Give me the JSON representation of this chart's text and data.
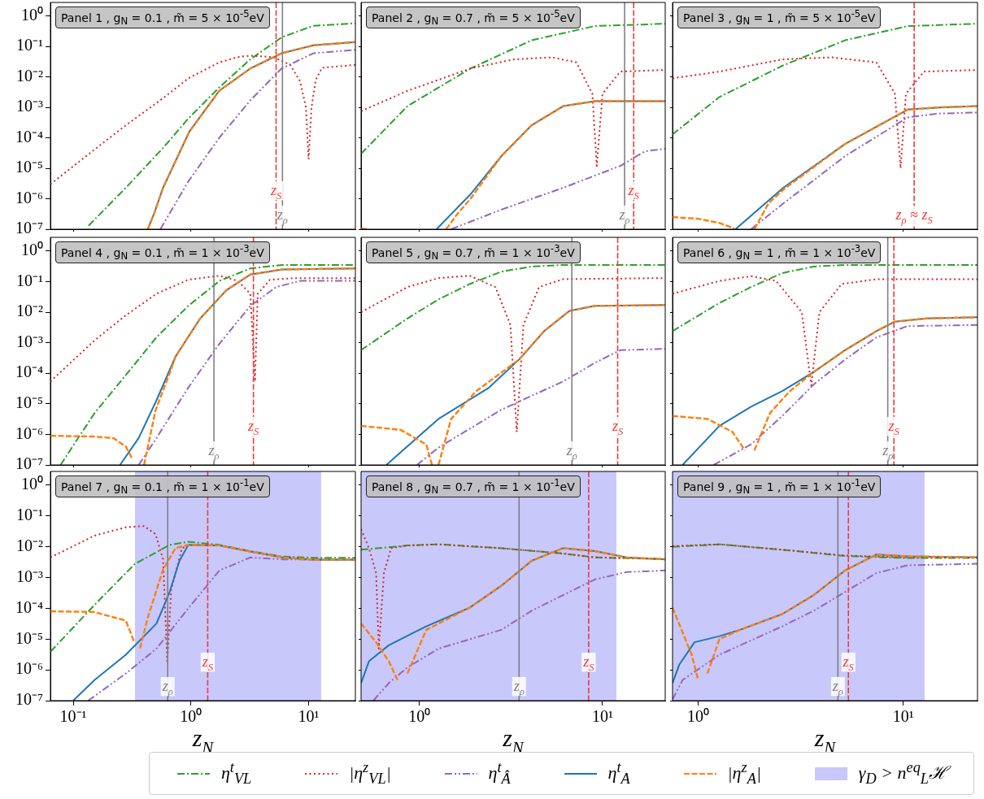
{
  "chart_data": [
    {
      "type": "line",
      "title": "Panel 1 , g$_{N}$ = 0.1 , m̃ = 5 × 10$^{-5}$eV",
      "log": "xy",
      "tick_labels": "y",
      "legend": "bottom",
      "xlim": [
        0.064,
        25
      ],
      "ylim": [
        1e-07,
        2.8
      ],
      "xticks": [
        {
          "value": 0.1,
          "label": null
        },
        {
          "value": 1,
          "label": null
        },
        {
          "value": 10,
          "label": null
        }
      ],
      "yticks": [
        {
          "value": 1,
          "label": "10⁰"
        },
        {
          "value": 0.1,
          "label": "10⁻¹"
        },
        {
          "value": 0.01,
          "label": "10⁻²"
        },
        {
          "value": 0.001,
          "label": "10⁻³"
        },
        {
          "value": 0.0001,
          "label": "10⁻⁴"
        },
        {
          "value": 1e-05,
          "label": "10⁻⁵"
        },
        {
          "value": 1e-06,
          "label": "10⁻⁶"
        },
        {
          "value": 1e-07,
          "label": "10⁻⁷"
        }
      ],
      "series": [
        {
          "name": "η$^{t}$$_{VL}$",
          "color": "#2ca02c",
          "line_style": "dashdot",
          "x": [
            0.135,
            0.28,
            0.59,
            0.95,
            1.74,
            3.2,
            5.9,
            11,
            25
          ],
          "values": [
            1.3e-07,
            2.3e-06,
            5e-05,
            0.00043,
            0.0045,
            0.038,
            0.2,
            0.48,
            0.58
          ]
        },
        {
          "name": "|η$^{z}$$_{VL}$|",
          "color": "#d62728",
          "line_style": "dotted",
          "x": [
            0.064,
            0.15,
            0.28,
            0.58,
            0.95,
            1.74,
            2.5,
            3.2,
            5,
            7,
            8.5,
            9.5,
            10,
            10.6,
            11.5,
            13,
            25
          ],
          "values": [
            3e-06,
            4e-05,
            0.00026,
            0.002,
            0.009,
            0.03,
            0.045,
            0.05,
            0.045,
            0.025,
            0.007,
            0.001,
            2e-05,
            0.001,
            0.008,
            0.02,
            0.025
          ]
        },
        {
          "name": "η$^{t}$$_{Â}$",
          "color": "#9467bd",
          "line_style": "dashdotdot",
          "x": [
            0.55,
            0.95,
            1.74,
            3.2,
            5.9,
            11,
            25
          ],
          "values": [
            1e-07,
            3.7e-06,
            0.0001,
            0.0017,
            0.019,
            0.06,
            0.078
          ]
        },
        {
          "name": "η$^{t}$$_{A}$",
          "color": "#1f77b4",
          "line_style": "solid",
          "x": [
            0.43,
            0.49,
            0.58,
            0.97,
            1.74,
            3.2,
            5.9,
            11,
            25
          ],
          "values": [
            1e-07,
            3.5e-07,
            2.3e-06,
            0.00016,
            0.0035,
            0.019,
            0.06,
            0.11,
            0.14
          ]
        },
        {
          "name": "|η$^{z}$$_{A}$|",
          "color": "#ff7f0e",
          "line_style": "dashed",
          "x": [
            0.43,
            0.49,
            0.58,
            0.97,
            1.74,
            3.2,
            5.9,
            11,
            25
          ],
          "values": [
            1e-07,
            3.5e-07,
            2.3e-06,
            0.00016,
            0.0035,
            0.019,
            0.06,
            0.11,
            0.14
          ]
        }
      ],
      "ref_lines": [
        {
          "axis": "x",
          "value": 6.0,
          "label": "z$_{ρ}$",
          "color": "#808080",
          "line_style": "solid"
        },
        {
          "axis": "x",
          "value": 5.3,
          "label": "z$_{S}$",
          "color": "#ef3b3b",
          "line_style": "dashed"
        }
      ]
    },
    {
      "type": "line",
      "title": "Panel 2 , g$_{N}$ = 0.7 , m̃ = 5 × 10$^{-5}$eV",
      "log": "xy",
      "tick_labels": false,
      "xlim": [
        0.48,
        22
      ],
      "ylim": [
        1e-07,
        2.8
      ],
      "xticks": [
        {
          "value": 1,
          "label": null
        },
        {
          "value": 10,
          "label": null
        }
      ],
      "yticks": [
        {
          "value": 1,
          "label": null
        },
        {
          "value": 0.1,
          "label": null
        },
        {
          "value": 0.01,
          "label": null
        },
        {
          "value": 0.001,
          "label": null
        },
        {
          "value": 0.0001,
          "label": null
        },
        {
          "value": 1e-05,
          "label": null
        },
        {
          "value": 1e-06,
          "label": null
        },
        {
          "value": 1e-07,
          "label": null
        }
      ],
      "series": [
        {
          "color": "#2ca02c",
          "line_style": "dashdot",
          "x": [
            0.48,
            0.86,
            1.9,
            4.1,
            9.1,
            22
          ],
          "values": [
            3e-05,
            0.0011,
            0.019,
            0.16,
            0.47,
            0.56
          ]
        },
        {
          "color": "#d62728",
          "line_style": "dotted",
          "x": [
            0.48,
            0.86,
            1.9,
            3.3,
            5.3,
            7.2,
            8.8,
            9.3,
            10,
            12.5,
            22
          ],
          "values": [
            0.00075,
            0.0035,
            0.019,
            0.038,
            0.044,
            0.03,
            0.0028,
            1.2e-05,
            0.0028,
            0.015,
            0.017
          ]
        },
        {
          "color": "#9467bd",
          "line_style": "dashdotdot",
          "x": [
            1.49,
            2.8,
            6.1,
            12.5,
            17,
            22
          ],
          "values": [
            1e-07,
            4.4e-07,
            2.3e-06,
            1.2e-05,
            3.6e-05,
            4.4e-05
          ]
        },
        {
          "color": "#1f77b4",
          "line_style": "solid",
          "x": [
            1.24,
            1.9,
            2.8,
            4.1,
            6.1,
            9.1,
            22
          ],
          "values": [
            1e-07,
            1.4e-06,
            2.5e-05,
            0.00026,
            0.0011,
            0.0016,
            0.0016
          ]
        },
        {
          "color": "#ff7f0e",
          "line_style": "dashed",
          "x": [
            0.48,
            0.52,
            0.9,
            1.4,
            1.6,
            1.9,
            2.8,
            4.1,
            6.1,
            9.1,
            22
          ],
          "values": [
            1.05e-07,
            1e-07,
            null,
            1e-07,
            3e-07,
            1e-06,
            2.5e-05,
            0.00026,
            0.0011,
            0.0016,
            0.0016
          ]
        }
      ],
      "ref_lines": [
        {
          "axis": "x",
          "value": 13.2,
          "label": "z$_{ρ}$",
          "color": "#808080",
          "line_style": "solid"
        },
        {
          "axis": "x",
          "value": 14.8,
          "label": "z$_{S}$",
          "color": "#ef3b3b",
          "line_style": "dashed"
        }
      ]
    },
    {
      "type": "line",
      "title": "Panel 3 , g$_{N}$ = 1 , m̃ = 5 × 10$^{-5}$eV",
      "log": "xy",
      "tick_labels": false,
      "xlim": [
        0.75,
        23
      ],
      "ylim": [
        1e-07,
        2.8
      ],
      "xticks": [
        {
          "value": 1,
          "label": null
        },
        {
          "value": 10,
          "label": null
        }
      ],
      "yticks": [
        {
          "value": 1,
          "label": null
        },
        {
          "value": 0.1,
          "label": null
        },
        {
          "value": 0.01,
          "label": null
        },
        {
          "value": 0.001,
          "label": null
        },
        {
          "value": 0.0001,
          "label": null
        },
        {
          "value": 1e-05,
          "label": null
        },
        {
          "value": 1e-06,
          "label": null
        },
        {
          "value": 1e-07,
          "label": null
        }
      ],
      "series": [
        {
          "color": "#2ca02c",
          "line_style": "dashdot",
          "x": [
            0.75,
            1.27,
            2.6,
            5.2,
            10.5,
            23
          ],
          "values": [
            0.00013,
            0.0022,
            0.024,
            0.16,
            0.47,
            0.56
          ]
        },
        {
          "color": "#d62728",
          "line_style": "dotted",
          "x": [
            0.75,
            1.27,
            2.6,
            4.5,
            7.4,
            9.1,
            9.7,
            10.3,
            12.6,
            23
          ],
          "values": [
            0.009,
            0.015,
            0.038,
            0.044,
            0.03,
            0.0028,
            1e-05,
            0.0028,
            0.015,
            0.017
          ]
        },
        {
          "color": "#9467bd",
          "line_style": "dashdotdot",
          "x": [
            1.81,
            2.6,
            5.2,
            10.5,
            14.9,
            23
          ],
          "values": [
            1e-07,
            7e-07,
            2.5e-05,
            0.00047,
            0.00063,
            0.00068
          ]
        },
        {
          "color": "#1f77b4",
          "line_style": "solid",
          "x": [
            1.52,
            2.6,
            5.2,
            10.5,
            14.9,
            23
          ],
          "values": [
            1e-07,
            2.3e-06,
            6.3e-05,
            0.00085,
            0.001,
            0.0011
          ]
        },
        {
          "color": "#ff7f0e",
          "line_style": "dashed",
          "x": [
            0.75,
            1.0,
            1.27,
            1.5,
            1.75,
            1.88,
            2.2,
            2.6,
            5.2,
            10.5,
            14.9,
            23
          ],
          "values": [
            2.5e-07,
            2.2e-07,
            1.6e-07,
            1.05e-07,
            null,
            1e-07,
            7e-07,
            2e-06,
            6.3e-05,
            0.00085,
            0.001,
            0.0011
          ]
        }
      ],
      "ref_lines": [
        {
          "axis": "x",
          "value": 11.3,
          "label": "z$_{ρ}$ ≈ z$_{S}$",
          "color": "#ef3b3b",
          "line_style": "dashed"
        }
      ]
    },
    {
      "type": "line",
      "title": "Panel 4 , g$_{N}$ = 0.1 , m̃ = 1 × 10$^{-3}$eV",
      "log": "xy",
      "tick_labels": "y",
      "xlim": [
        0.064,
        25
      ],
      "ylim": [
        1e-07,
        2.8
      ],
      "xticks": [
        {
          "value": 0.1,
          "label": null
        },
        {
          "value": 1,
          "label": null
        },
        {
          "value": 10,
          "label": null
        }
      ],
      "yticks": [
        {
          "value": 1,
          "label": "10⁰"
        },
        {
          "value": 0.1,
          "label": "10⁻¹"
        },
        {
          "value": 0.01,
          "label": "10⁻²"
        },
        {
          "value": 0.001,
          "label": "10⁻³"
        },
        {
          "value": 0.0001,
          "label": "10⁻⁴"
        },
        {
          "value": 1e-05,
          "label": "10⁻⁵"
        },
        {
          "value": 1e-06,
          "label": "10⁻⁶"
        },
        {
          "value": 1e-07,
          "label": "10⁻⁷"
        }
      ],
      "series": [
        {
          "color": "#2ca02c",
          "line_style": "dashdot",
          "x": [
            0.078,
            0.152,
            0.28,
            0.51,
            0.95,
            1.75,
            3.2,
            6,
            25
          ],
          "values": [
            1e-07,
            5e-06,
            8.7e-05,
            0.0015,
            0.016,
            0.105,
            0.27,
            0.35,
            0.35
          ]
        },
        {
          "color": "#d62728",
          "line_style": "dotted",
          "x": [
            0.064,
            0.152,
            0.28,
            0.51,
            0.95,
            1.75,
            2.5,
            3.2,
            3.5,
            3.7,
            4.7,
            7.6,
            25
          ],
          "values": [
            5.4e-05,
            0.0012,
            0.0079,
            0.04,
            0.115,
            0.155,
            0.105,
            0.04,
            5.4e-05,
            0.04,
            0.115,
            0.13,
            0.13
          ]
        },
        {
          "color": "#9467bd",
          "line_style": "dashdotdot",
          "x": [
            0.36,
            0.51,
            0.95,
            1.75,
            3.2,
            5.3,
            8.5,
            25
          ],
          "values": [
            1e-07,
            7.6e-07,
            3.4e-05,
            0.00093,
            0.016,
            0.066,
            0.105,
            0.105
          ]
        },
        {
          "color": "#1f77b4",
          "line_style": "solid",
          "x": [
            0.25,
            0.36,
            0.51,
            0.74,
            1.2,
            2.0,
            3.2,
            6,
            25
          ],
          "values": [
            1e-07,
            7.6e-07,
            1.3e-05,
            0.00035,
            0.0062,
            0.052,
            0.17,
            0.25,
            0.27
          ]
        },
        {
          "color": "#ff7f0e",
          "line_style": "dashed",
          "x": [
            0.064,
            0.15,
            0.22,
            0.28,
            0.32,
            0.36,
            0.4,
            0.5,
            0.66,
            0.74,
            1.2,
            2.0,
            3.2,
            6,
            25
          ],
          "values": [
            9e-07,
            8.5e-07,
            7.5e-07,
            4e-07,
            1.5e-07,
            null,
            1e-07,
            6e-06,
            0.0001,
            0.00035,
            0.0062,
            0.052,
            0.17,
            0.25,
            0.27
          ]
        }
      ],
      "ref_lines": [
        {
          "axis": "x",
          "value": 1.57,
          "label": "z$_{ρ}$",
          "color": "#808080",
          "line_style": "solid"
        },
        {
          "axis": "x",
          "value": 3.4,
          "label": "z$_{S}$",
          "color": "#ef3b3b",
          "line_style": "dashed"
        }
      ]
    },
    {
      "type": "line",
      "title": "Panel 5 , g$_{N}$ = 0.7 , m̃ = 1 × 10$^{-3}$eV",
      "log": "xy",
      "tick_labels": false,
      "xlim": [
        0.48,
        22
      ],
      "ylim": [
        1e-07,
        2.8
      ],
      "xticks": [
        {
          "value": 1,
          "label": null
        },
        {
          "value": 10,
          "label": null
        }
      ],
      "yticks": [
        {
          "value": 1,
          "label": null
        },
        {
          "value": 0.1,
          "label": null
        },
        {
          "value": 0.01,
          "label": null
        },
        {
          "value": 0.001,
          "label": null
        },
        {
          "value": 0.0001,
          "label": null
        },
        {
          "value": 1e-05,
          "label": null
        },
        {
          "value": 1e-06,
          "label": null
        },
        {
          "value": 1e-07,
          "label": null
        }
      ],
      "series": [
        {
          "color": "#2ca02c",
          "line_style": "dashdot",
          "x": [
            0.48,
            0.86,
            1.27,
            1.88,
            2.8,
            4.1,
            6.1,
            22
          ],
          "values": [
            0.00057,
            0.0062,
            0.026,
            0.083,
            0.21,
            0.31,
            0.35,
            0.35
          ]
        },
        {
          "color": "#d62728",
          "line_style": "dotted",
          "x": [
            0.48,
            0.86,
            1.27,
            1.88,
            2.6,
            3.14,
            3.4,
            3.7,
            4.5,
            6.1,
            22
          ],
          "values": [
            0.01,
            0.066,
            0.13,
            0.155,
            0.066,
            0.0038,
            1.2e-06,
            0.0038,
            0.066,
            0.12,
            0.13
          ]
        },
        {
          "color": "#9467bd",
          "line_style": "dashdotdot",
          "x": [
            0.97,
            1.27,
            2.8,
            6.1,
            9.1,
            12.5,
            22
          ],
          "values": [
            1e-07,
            3.7e-07,
            6.4e-06,
            5.4e-05,
            0.00022,
            0.00057,
            0.00063
          ]
        },
        {
          "color": "#1f77b4",
          "line_style": "solid",
          "x": [
            0.66,
            1.27,
            2.4,
            3.5,
            4.8,
            6.6,
            9.1,
            22
          ],
          "values": [
            1e-07,
            3.2e-06,
            3.4e-05,
            0.00028,
            0.0024,
            0.011,
            0.016,
            0.017
          ]
        },
        {
          "color": "#ff7f0e",
          "line_style": "dashed",
          "x": [
            0.48,
            0.79,
            1.09,
            1.17,
            1.22,
            1.27,
            1.49,
            2.04,
            3.5,
            4.8,
            6.6,
            9.1,
            22
          ],
          "values": [
            1.9e-06,
            1.4e-06,
            4.7e-07,
            1e-07,
            null,
            1e-07,
            3.2e-06,
            2.6e-05,
            0.00028,
            0.0024,
            0.011,
            0.016,
            0.017
          ]
        }
      ],
      "ref_lines": [
        {
          "axis": "x",
          "value": 6.8,
          "label": "z$_{ρ}$",
          "color": "#808080",
          "line_style": "solid"
        },
        {
          "axis": "x",
          "value": 12.1,
          "label": "z$_{S}$",
          "color": "#ef3b3b",
          "line_style": "dashed"
        }
      ]
    },
    {
      "type": "line",
      "title": "Panel 6 , g$_{N}$ = 1 , m̃ = 1 × 10$^{-3}$eV",
      "log": "xy",
      "tick_labels": false,
      "xlim": [
        0.75,
        23
      ],
      "ylim": [
        1e-07,
        2.8
      ],
      "xticks": [
        {
          "value": 1,
          "label": null
        },
        {
          "value": 10,
          "label": null
        }
      ],
      "yticks": [
        {
          "value": 1,
          "label": null
        },
        {
          "value": 0.1,
          "label": null
        },
        {
          "value": 0.01,
          "label": null
        },
        {
          "value": 0.001,
          "label": null
        },
        {
          "value": 0.0001,
          "label": null
        },
        {
          "value": 1e-05,
          "label": null
        },
        {
          "value": 1e-06,
          "label": null
        },
        {
          "value": 1e-07,
          "label": null
        }
      ],
      "series": [
        {
          "color": "#2ca02c",
          "line_style": "dashdot",
          "x": [
            0.75,
            1.27,
            1.81,
            2.57,
            3.66,
            5.2,
            23
          ],
          "values": [
            0.0024,
            0.02,
            0.066,
            0.19,
            0.31,
            0.35,
            0.35
          ]
        },
        {
          "color": "#d62728",
          "line_style": "dotted",
          "x": [
            0.75,
            1.27,
            1.81,
            2.4,
            3.2,
            3.56,
            3.9,
            5,
            7.5,
            23
          ],
          "values": [
            0.04,
            0.105,
            0.15,
            0.105,
            0.01,
            4e-05,
            0.01,
            0.083,
            0.12,
            0.12
          ]
        },
        {
          "color": "#9467bd",
          "line_style": "dashdotdot",
          "x": [
            1.19,
            1.81,
            2.57,
            3.66,
            5.2,
            7.4,
            10.5,
            23
          ],
          "values": [
            1e-07,
            4.7e-07,
            4e-06,
            4.3e-05,
            0.00028,
            0.0015,
            0.0035,
            0.0038
          ]
        },
        {
          "color": "#1f77b4",
          "line_style": "solid",
          "x": [
            0.84,
            1.27,
            1.81,
            2.57,
            3.66,
            5.2,
            7.4,
            9.1,
            13,
            23
          ],
          "values": [
            1e-07,
            1.9e-06,
            8e-06,
            2.6e-05,
            0.00011,
            0.00057,
            0.0024,
            0.0049,
            0.0062,
            0.0068
          ]
        },
        {
          "color": "#ff7f0e",
          "line_style": "dashed",
          "x": [
            0.75,
            1.11,
            1.47,
            1.69,
            1.75,
            1.88,
            2.24,
            2.8,
            3.66,
            5.2,
            7.4,
            9.1,
            13,
            23
          ],
          "values": [
            4e-06,
            3.2e-06,
            1.2e-06,
            3e-07,
            null,
            3e-07,
            5e-06,
            2.6e-05,
            0.00011,
            0.00057,
            0.0024,
            0.0049,
            0.0062,
            0.0068
          ]
        }
      ],
      "ref_lines": [
        {
          "axis": "x",
          "value": 8.4,
          "label": "z$_{ρ}$",
          "color": "#808080",
          "line_style": "solid"
        },
        {
          "axis": "x",
          "value": 9.0,
          "label": "z$_{S}$",
          "color": "#ef3b3b",
          "line_style": "dashed"
        }
      ]
    },
    {
      "type": "line",
      "title": "Panel 7 , g$_{N}$ = 0.1 , m̃ = 1 × 10$^{-1}$eV",
      "xlabel": "z$_{N}$",
      "log": "xy",
      "xlim": [
        0.064,
        25
      ],
      "ylim": [
        1e-07,
        2.8
      ],
      "xticks": [
        {
          "value": 0.1,
          "label": "10⁻¹"
        },
        {
          "value": 1,
          "label": "10⁰"
        },
        {
          "value": 10,
          "label": "10¹"
        }
      ],
      "yticks": [
        {
          "value": 1,
          "label": "10⁰"
        },
        {
          "value": 0.1,
          "label": "10⁻¹"
        },
        {
          "value": 0.01,
          "label": "10⁻²"
        },
        {
          "value": 0.001,
          "label": "10⁻³"
        },
        {
          "value": 0.0001,
          "label": "10⁻⁴"
        },
        {
          "value": 1e-05,
          "label": "10⁻⁵"
        },
        {
          "value": 1e-06,
          "label": "10⁻⁶"
        },
        {
          "value": 1e-07,
          "label": "10⁻⁷"
        }
      ],
      "series": [
        {
          "color": "#2ca02c",
          "line_style": "dashdot",
          "x": [
            0.064,
            0.152,
            0.28,
            0.336,
            0.66,
            0.95,
            1.75,
            3.2,
            6,
            11,
            25
          ],
          "values": [
            3.9e-06,
            0.00013,
            0.0014,
            0.0028,
            0.0115,
            0.0145,
            0.0115,
            0.0072,
            0.0048,
            0.0044,
            0.0044
          ]
        },
        {
          "color": "#d62728",
          "line_style": "dotted",
          "x": [
            0.064,
            0.152,
            0.28,
            0.4,
            0.5,
            0.58,
            0.63,
            0.68,
            0.84,
            0.95,
            1.75,
            3.2,
            6,
            11,
            25
          ],
          "values": [
            0.0045,
            0.023,
            0.043,
            0.047,
            0.026,
            0.004,
            1.9e-06,
            0.0004,
            0.009,
            0.011,
            0.011,
            0.007,
            0.0045,
            0.0038,
            0.0038
          ]
        },
        {
          "color": "#9467bd",
          "line_style": "dashdotdot",
          "x": [
            0.134,
            0.28,
            0.51,
            0.95,
            1.75,
            3.2,
            6,
            25
          ],
          "values": [
            1e-07,
            7.6e-07,
            4.9e-06,
            0.0001,
            0.0017,
            0.0045,
            0.0039,
            0.0037
          ]
        },
        {
          "color": "#1f77b4",
          "line_style": "solid",
          "x": [
            0.1,
            0.152,
            0.28,
            0.51,
            0.66,
            0.8,
            0.95,
            1.75,
            3.2,
            6,
            11,
            25
          ],
          "values": [
            1e-07,
            4.7e-07,
            3.1e-06,
            3.2e-05,
            0.00034,
            0.0035,
            0.0115,
            0.011,
            0.007,
            0.0045,
            0.0038,
            0.0038
          ]
        },
        {
          "color": "#ff7f0e",
          "line_style": "dashed",
          "x": [
            0.064,
            0.15,
            0.28,
            0.33,
            0.35,
            0.37,
            0.43,
            0.58,
            0.74,
            0.95,
            1.75,
            3.2,
            6,
            11,
            25
          ],
          "values": [
            8e-05,
            7.6e-05,
            4e-05,
            8e-06,
            null,
            5e-06,
            5e-05,
            0.0018,
            0.009,
            0.0115,
            0.011,
            0.007,
            0.0045,
            0.0038,
            0.0038
          ]
        }
      ],
      "ref_lines": [
        {
          "axis": "x",
          "value": 0.635,
          "label": "z$_{ρ}$",
          "color": "#808080",
          "line_style": "solid"
        },
        {
          "axis": "x",
          "value": 1.39,
          "label": "z$_{S}$",
          "color": "#ef3b3b",
          "line_style": "dashed"
        }
      ],
      "bands": [
        {
          "axis": "x",
          "from": 0.335,
          "to": 12.8,
          "color": "#c8c8fa",
          "label": "γ$_{D}$ > n$^{eq}$$_{L}$ℋ"
        }
      ]
    },
    {
      "type": "line",
      "title": "Panel 8 , g$_{N}$ = 0.7 , m̃ = 1 × 10$^{-1}$eV",
      "xlabel": "z$_{N}$",
      "log": "xy",
      "tick_labels": "x",
      "xlim": [
        0.48,
        22
      ],
      "ylim": [
        1e-07,
        2.8
      ],
      "xticks": [
        {
          "value": 1,
          "label": "10⁰"
        },
        {
          "value": 10,
          "label": "10¹"
        }
      ],
      "yticks": [
        {
          "value": 1,
          "label": null
        },
        {
          "value": 0.1,
          "label": null
        },
        {
          "value": 0.01,
          "label": null
        },
        {
          "value": 0.001,
          "label": null
        },
        {
          "value": 0.0001,
          "label": null
        },
        {
          "value": 1e-05,
          "label": null
        },
        {
          "value": 1e-06,
          "label": null
        },
        {
          "value": 1e-07,
          "label": null
        }
      ],
      "series": [
        {
          "color": "#2ca02c",
          "line_style": "dashdot",
          "x": [
            0.48,
            0.86,
            1.27,
            2.8,
            6.1,
            9.1,
            22
          ],
          "values": [
            0.008,
            0.011,
            0.012,
            0.009,
            0.006,
            0.0045,
            0.004
          ]
        },
        {
          "color": "#d62728",
          "line_style": "dotted",
          "x": [
            0.48,
            0.53,
            0.58,
            0.6,
            0.64,
            0.7,
            0.86,
            1.27,
            2.8,
            6.1,
            9.1,
            22
          ],
          "values": [
            0.037,
            0.009,
            0.0014,
            4.9e-06,
            0.0014,
            0.009,
            0.011,
            0.012,
            0.009,
            0.006,
            0.0045,
            0.004
          ]
        },
        {
          "color": "#9467bd",
          "line_style": "dashdotdot",
          "x": [
            0.56,
            0.68,
            0.86,
            1.27,
            2.8,
            4.1,
            6.1,
            9.1,
            13.5,
            22
          ],
          "values": [
            1e-07,
            3.7e-07,
            1.2e-06,
            4.9e-06,
            2e-05,
            8.3e-05,
            0.00027,
            0.00087,
            0.0015,
            0.0017
          ]
        },
        {
          "color": "#1f77b4",
          "line_style": "solid",
          "x": [
            0.48,
            0.53,
            0.68,
            1.09,
            1.88,
            2.8,
            4.1,
            6.1,
            9.1,
            13.5,
            22
          ],
          "values": [
            3.7e-07,
            1.9e-06,
            6.3e-06,
            2.6e-05,
            0.000105,
            0.00054,
            0.0035,
            0.009,
            0.0072,
            0.0045,
            0.0039
          ]
        },
        {
          "color": "#ff7f0e",
          "line_style": "dashed",
          "x": [
            0.48,
            0.58,
            0.68,
            0.76,
            0.79,
            0.86,
            1.09,
            1.88,
            2.8,
            4.1,
            6.1,
            9.1,
            13.5,
            22
          ],
          "values": [
            3.2e-05,
            7.9e-06,
            1.9e-06,
            4.7e-07,
            null,
            7.6e-07,
            2e-05,
            0.000105,
            0.00054,
            0.0035,
            0.009,
            0.0072,
            0.0045,
            0.0039
          ]
        }
      ],
      "ref_lines": [
        {
          "axis": "x",
          "value": 3.5,
          "label": "z$_{ρ}$",
          "color": "#808080",
          "line_style": "solid"
        },
        {
          "axis": "x",
          "value": 8.4,
          "label": "z$_{S}$",
          "color": "#ef3b3b",
          "line_style": "dashed"
        }
      ],
      "bands": [
        {
          "axis": "x",
          "from": 0.48,
          "to": 11.9,
          "color": "#c8c8fa"
        }
      ]
    },
    {
      "type": "line",
      "title": "Panel 9 , g$_{N}$ = 1 , m̃ = 1 × 10$^{-1}$eV",
      "xlabel": "z$_{N}$",
      "log": "xy",
      "tick_labels": "x",
      "xlim": [
        0.75,
        23
      ],
      "ylim": [
        1e-07,
        2.8
      ],
      "xticks": [
        {
          "value": 1,
          "label": "10⁰"
        },
        {
          "value": 10,
          "label": "10¹"
        }
      ],
      "yticks": [
        {
          "value": 1,
          "label": null
        },
        {
          "value": 0.1,
          "label": null
        },
        {
          "value": 0.01,
          "label": null
        },
        {
          "value": 0.001,
          "label": null
        },
        {
          "value": 0.0001,
          "label": null
        },
        {
          "value": 1e-05,
          "label": null
        },
        {
          "value": 1e-06,
          "label": null
        },
        {
          "value": 1e-07,
          "label": null
        }
      ],
      "series": [
        {
          "color": "#2ca02c",
          "line_style": "dashdot",
          "x": [
            0.75,
            1.27,
            2.57,
            5.2,
            10.5,
            23
          ],
          "values": [
            0.01,
            0.012,
            0.008,
            0.005,
            0.0043,
            0.0043
          ]
        },
        {
          "color": "#d62728",
          "line_style": "dotted",
          "x": [
            0.75,
            1.27,
            2.57,
            5.2,
            10.5,
            23
          ],
          "values": [
            0.0105,
            0.012,
            0.008,
            0.0052,
            0.0045,
            0.0045
          ]
        },
        {
          "color": "#9467bd",
          "line_style": "dashdotdot",
          "x": [
            0.75,
            0.84,
            1.27,
            2.57,
            3.66,
            5.2,
            7.4,
            10.5,
            23
          ],
          "values": [
            1.1e-07,
            4.7e-07,
            3.1e-06,
            2.6e-05,
            8.3e-05,
            0.00034,
            0.0014,
            0.0025,
            0.0028
          ]
        },
        {
          "color": "#1f77b4",
          "line_style": "solid",
          "x": [
            0.75,
            0.81,
            0.96,
            1.27,
            1.6,
            2.57,
            3.66,
            5.2,
            7.4,
            10.5,
            23
          ],
          "values": [
            3.7e-07,
            1.5e-06,
            7.9e-06,
            1.25e-05,
            2e-05,
            6.5e-05,
            0.00027,
            0.0017,
            0.0056,
            0.0049,
            0.0045
          ]
        },
        {
          "color": "#ff7f0e",
          "line_style": "dashed",
          "x": [
            0.75,
            0.83,
            0.93,
            1.0,
            1.03,
            1.11,
            1.27,
            1.6,
            2.57,
            3.66,
            5.2,
            7.4,
            10.5,
            23
          ],
          "values": [
            0.000105,
            2e-05,
            3.1e-06,
            4.7e-07,
            null,
            7.6e-07,
            1e-05,
            2e-05,
            6.5e-05,
            0.00027,
            0.0017,
            0.0056,
            0.0049,
            0.0045
          ]
        }
      ],
      "ref_lines": [
        {
          "axis": "x",
          "value": 4.8,
          "label": "z$_{ρ}$",
          "color": "#808080",
          "line_style": "solid"
        },
        {
          "axis": "x",
          "value": 5.4,
          "label": "z$_{S}$",
          "color": "#ef3b3b",
          "line_style": "dashed"
        }
      ],
      "bands": [
        {
          "axis": "x",
          "from": 0.75,
          "to": 12.7,
          "color": "#c8c8fa"
        }
      ]
    }
  ]
}
